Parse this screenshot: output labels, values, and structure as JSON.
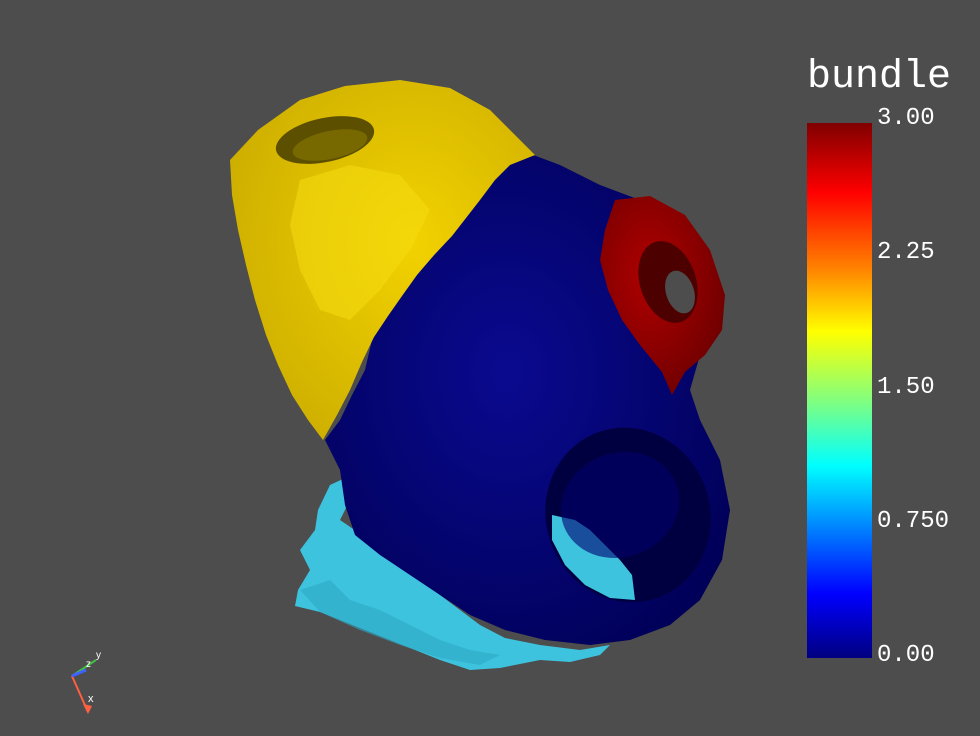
{
  "scalar_bar": {
    "title": "bundle",
    "ticks": [
      "3.00",
      "2.25",
      "1.50",
      "0.750",
      "0.00"
    ],
    "range": [
      0,
      3
    ],
    "colormap": "jet"
  },
  "orientation_axes": {
    "x": "x",
    "y": "y",
    "z": "z"
  },
  "colors": {
    "background": "#4d4d4d",
    "region_yellow": "#e6c400",
    "region_navy": "#000080",
    "region_red": "#a00000",
    "region_cyan": "#38c0dc"
  }
}
